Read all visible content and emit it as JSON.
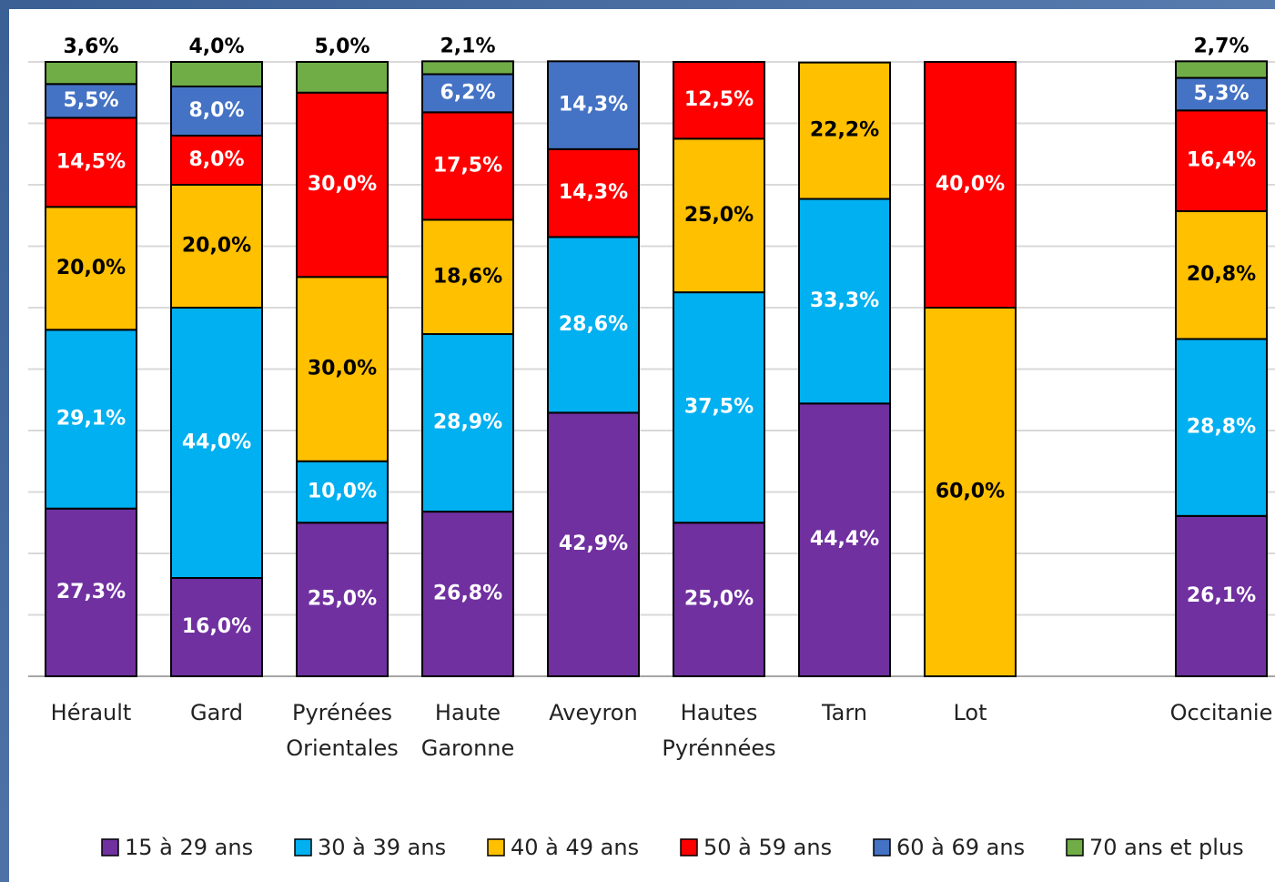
{
  "chart_data": {
    "type": "stacked_bar",
    "categories": [
      "Hérault",
      "Gard",
      "Pyrénées Orientales",
      "Haute Garonne",
      "Aveyron",
      "Hautes Pyrénnées",
      "Tarn",
      "Lot",
      null,
      "Occitanie"
    ],
    "series": [
      {
        "name": "15 à 29 ans",
        "color": "#7030a0",
        "label_color": "#ffffff",
        "values": [
          27.3,
          16.0,
          25.0,
          26.8,
          42.9,
          25.0,
          44.4,
          null,
          null,
          26.1
        ],
        "value_labels": [
          "27,3%",
          "16,0%",
          "25,0%",
          "26,8%",
          "42,9%",
          "25,0%",
          "44,4%",
          null,
          null,
          "26,1%"
        ]
      },
      {
        "name": "30 à 39 ans",
        "color": "#00b0f0",
        "label_color": "#ffffff",
        "values": [
          29.1,
          44.0,
          10.0,
          28.9,
          28.6,
          37.5,
          33.3,
          null,
          null,
          28.8
        ],
        "value_labels": [
          "29,1%",
          "44,0%",
          "10,0%",
          "28,9%",
          "28,6%",
          "37,5%",
          "33,3%",
          null,
          null,
          "28,8%"
        ]
      },
      {
        "name": "40 à 49 ans",
        "color": "#ffc000",
        "label_color": "#000000",
        "values": [
          20.0,
          20.0,
          30.0,
          18.6,
          null,
          25.0,
          22.2,
          60.0,
          null,
          20.8
        ],
        "value_labels": [
          "20,0%",
          "20,0%",
          "30,0%",
          "18,6%",
          null,
          "25,0%",
          "22,2%",
          "60,0%",
          null,
          "20,8%"
        ]
      },
      {
        "name": "50 à 59 ans",
        "color": "#ff0000",
        "label_color": "#ffffff",
        "values": [
          14.5,
          8.0,
          30.0,
          17.5,
          14.3,
          12.5,
          null,
          40.0,
          null,
          16.4
        ],
        "value_labels": [
          "14,5%",
          "8,0%",
          "30,0%",
          "17,5%",
          "14,3%",
          "12,5%",
          null,
          "40,0%",
          null,
          "16,4%"
        ]
      },
      {
        "name": "60 à 69 ans",
        "color": "#4472c4",
        "label_color": "#ffffff",
        "values": [
          5.5,
          8.0,
          null,
          6.2,
          14.3,
          null,
          null,
          null,
          null,
          5.3
        ],
        "value_labels": [
          "5,5%",
          "8,0%",
          null,
          "6,2%",
          "14,3%",
          null,
          null,
          null,
          null,
          "5,3%"
        ]
      },
      {
        "name": "70 ans et plus",
        "color": "#70ad47",
        "label_color": "#000000",
        "labels_above": true,
        "values": [
          3.6,
          4.0,
          5.0,
          2.1,
          null,
          null,
          null,
          null,
          null,
          2.7
        ],
        "value_labels": [
          "3,6%",
          "4,0%",
          "5,0%",
          "2,1%",
          null,
          null,
          null,
          null,
          null,
          "2,7%"
        ]
      }
    ],
    "ylim": [
      0,
      100
    ],
    "yticks": [
      0,
      10,
      20,
      30,
      40,
      50,
      60,
      70,
      80,
      90,
      100
    ],
    "grid": true,
    "legend": "bottom"
  }
}
